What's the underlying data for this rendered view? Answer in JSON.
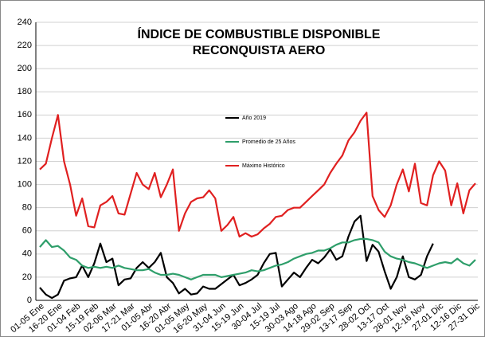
{
  "chart_data": {
    "type": "line",
    "title": "ÍNDICE DE COMBUSTIBLE DISPONIBLE",
    "subtitle": "RECONQUISTA  AERO",
    "categories": [
      "01-05 Ene",
      null,
      null,
      "16-20 Ene",
      null,
      null,
      "01-04 Feb",
      null,
      null,
      "15-19 Feb",
      null,
      null,
      "02-06 Mar",
      null,
      null,
      "17-21 Mar",
      null,
      null,
      "01-05 Abr",
      null,
      null,
      "16-20 Abr",
      null,
      null,
      "01-05 May",
      null,
      null,
      "16-20 May",
      null,
      null,
      "31-04 Jun",
      null,
      null,
      "15-19 Jun",
      null,
      null,
      "30-04 Jul",
      null,
      null,
      "15-19 Jul",
      null,
      null,
      "30-03 Ago",
      null,
      null,
      "14-18 Ago",
      null,
      null,
      "29-02 Sep",
      null,
      null,
      "13-17 Sep",
      null,
      null,
      "28-02 Oct",
      null,
      null,
      "13-17 Oct",
      null,
      null,
      "28-01 Nov",
      null,
      null,
      "12-16 Nov",
      null,
      null,
      "27-01 Dic",
      null,
      null,
      "12-16 Dic",
      null,
      null,
      "27-31 Dic"
    ],
    "series": [
      {
        "name": "Año 2019",
        "color": "#000000",
        "values": [
          11,
          5,
          2,
          5,
          17,
          19,
          20,
          30,
          20,
          32,
          49,
          33,
          36,
          13,
          18,
          19,
          28,
          33,
          28,
          33,
          41,
          20,
          15,
          6,
          10,
          5,
          6,
          12,
          10,
          10,
          14,
          18,
          22,
          13,
          15,
          18,
          22,
          32,
          40,
          41,
          12,
          18,
          24,
          20,
          28,
          35,
          32,
          37,
          44,
          35,
          38,
          55,
          68,
          73,
          34,
          48,
          42,
          25,
          10,
          20,
          38,
          20,
          18,
          22,
          38,
          49,
          null,
          null,
          null,
          null,
          null,
          null,
          null
        ]
      },
      {
        "name": "Promedio de 25 Años",
        "color": "#2e9e6a",
        "values": [
          46,
          52,
          46,
          47,
          43,
          37,
          35,
          30,
          28,
          29,
          28,
          29,
          28,
          30,
          28,
          27,
          26,
          26,
          27,
          24,
          22,
          22,
          23,
          22,
          20,
          18,
          20,
          22,
          22,
          22,
          20,
          21,
          22,
          23,
          24,
          26,
          25,
          26,
          28,
          30,
          31,
          33,
          36,
          38,
          40,
          41,
          43,
          43,
          45,
          48,
          50,
          50,
          52,
          53,
          53,
          52,
          50,
          42,
          38,
          36,
          35,
          33,
          32,
          30,
          28,
          30,
          32,
          33,
          32,
          36,
          32,
          30,
          35
        ]
      },
      {
        "name": "Máximo Histórico",
        "color": "#e02020",
        "values": [
          113,
          118,
          140,
          160,
          120,
          100,
          73,
          88,
          64,
          63,
          82,
          85,
          90,
          75,
          74,
          92,
          110,
          100,
          96,
          110,
          89,
          100,
          113,
          60,
          75,
          85,
          88,
          89,
          95,
          88,
          60,
          65,
          72,
          55,
          58,
          55,
          57,
          62,
          66,
          72,
          73,
          78,
          80,
          80,
          85,
          90,
          95,
          100,
          110,
          118,
          125,
          138,
          145,
          155,
          162,
          90,
          78,
          72,
          82,
          100,
          113,
          94,
          118,
          84,
          82,
          108,
          120,
          112,
          82,
          101,
          75,
          95,
          101
        ]
      }
    ],
    "ylim": [
      0,
      240
    ],
    "yticks": [
      0,
      20,
      40,
      60,
      80,
      100,
      120,
      140,
      160,
      180,
      200,
      220,
      240
    ],
    "grid": true,
    "legend": "center"
  }
}
